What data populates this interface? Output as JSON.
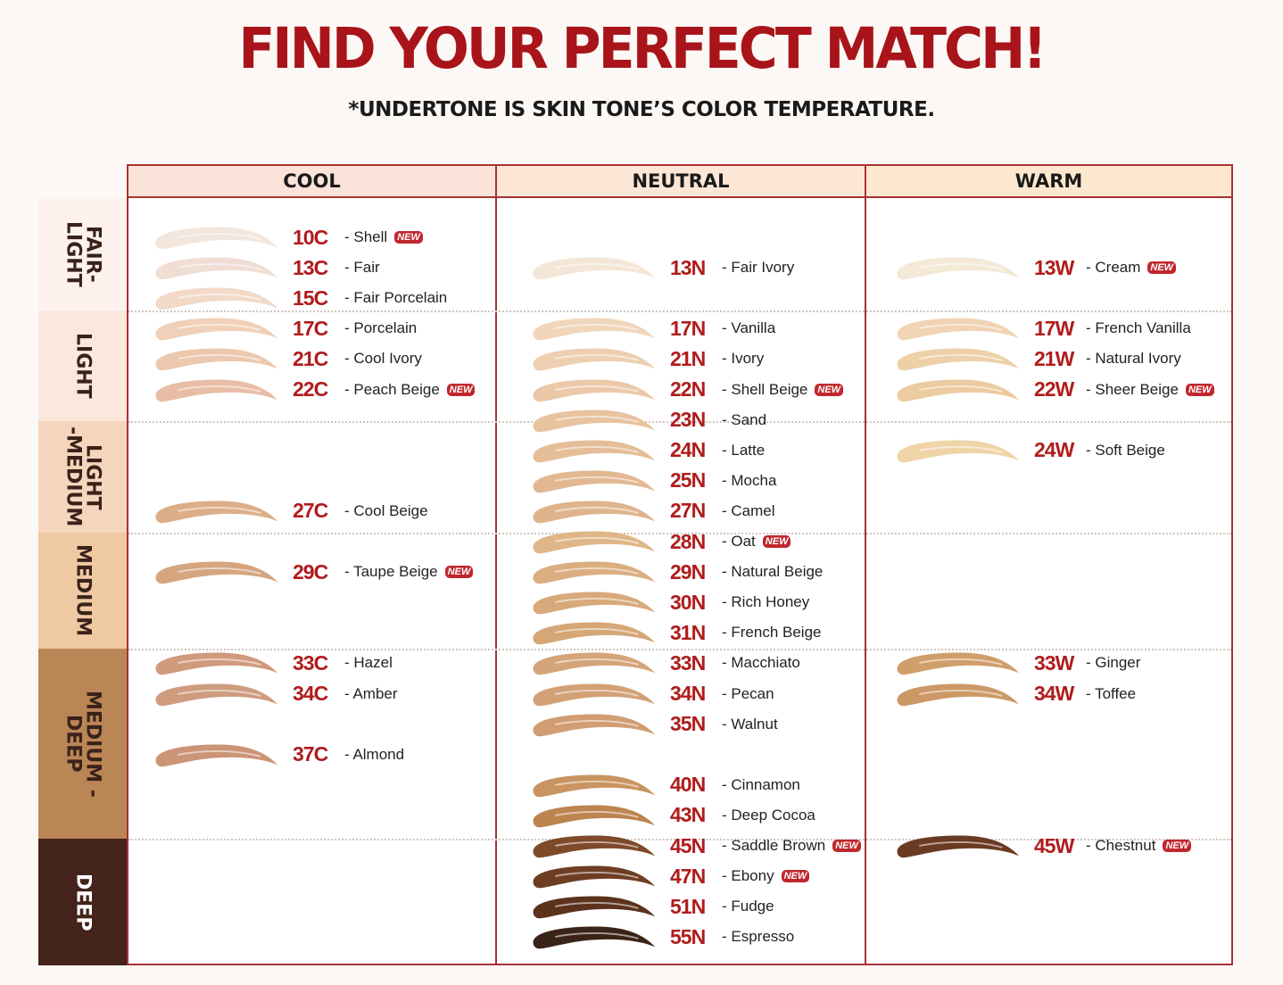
{
  "title": "FIND YOUR PERFECT MATCH!",
  "subtitle": "*UNDERTONE IS SKIN TONE’S COLOR TEMPERATURE.",
  "columns": [
    "COOL",
    "NEUTRAL",
    "WARM"
  ],
  "column_colors": [
    "#fbe3da",
    "#fce6d6",
    "#fde8cf"
  ],
  "border_color": "#a83232",
  "accent_color": "#b01c1c",
  "categories": [
    {
      "label": "FAIR-\nLIGHT",
      "color": "#fdf2ee",
      "text_color": "#3a2219"
    },
    {
      "label": "LIGHT",
      "color": "#fbe7dc",
      "text_color": "#3a2219"
    },
    {
      "label": "LIGHT\n-MEDIUM",
      "color": "#f5d6bd",
      "text_color": "#3a2219"
    },
    {
      "label": "MEDIUM",
      "color": "#efc9a2",
      "text_color": "#3a2219"
    },
    {
      "label": "MEDIUM -\nDEEP",
      "color": "#bb8656",
      "text_color": "#3a2219"
    },
    {
      "label": "DEEP",
      "color": "#43231a",
      "text_color": "#ffffff"
    }
  ],
  "new_badge": "NEW",
  "shades": [
    {
      "col": 0,
      "code": "10C",
      "name": "- Shell",
      "new": true,
      "color": "#f3e6dc"
    },
    {
      "col": 0,
      "code": "13C",
      "name": "- Fair",
      "new": false,
      "color": "#f0ddd3"
    },
    {
      "col": 0,
      "code": "15C",
      "name": "- Fair Porcelain",
      "new": false,
      "color": "#f2d9c8"
    },
    {
      "col": 0,
      "code": "17C",
      "name": "- Porcelain",
      "new": false,
      "color": "#f0d0b8"
    },
    {
      "col": 0,
      "code": "21C",
      "name": "- Cool Ivory",
      "new": false,
      "color": "#ecc8ae"
    },
    {
      "col": 0,
      "code": "22C",
      "name": "- Peach Beige",
      "new": true,
      "color": "#e8bda5"
    },
    {
      "col": 0,
      "code": "27C",
      "name": "- Cool Beige",
      "new": false,
      "color": "#dcae88"
    },
    {
      "col": 0,
      "code": "29C",
      "name": "- Taupe Beige",
      "new": true,
      "color": "#d6a57e"
    },
    {
      "col": 0,
      "code": "33C",
      "name": "- Hazel",
      "new": false,
      "color": "#d09a7c"
    },
    {
      "col": 0,
      "code": "34C",
      "name": "- Amber",
      "new": false,
      "color": "#cf9c80"
    },
    {
      "col": 0,
      "code": "37C",
      "name": "- Almond",
      "new": false,
      "color": "#cc9476"
    },
    {
      "col": 1,
      "code": "13N",
      "name": "- Fair Ivory",
      "new": false,
      "color": "#f4e6d6"
    },
    {
      "col": 1,
      "code": "17N",
      "name": "- Vanilla",
      "new": false,
      "color": "#f1d6bc"
    },
    {
      "col": 1,
      "code": "21N",
      "name": "- Ivory",
      "new": false,
      "color": "#eecfb1"
    },
    {
      "col": 1,
      "code": "22N",
      "name": "- Shell Beige",
      "new": true,
      "color": "#ebc9a8"
    },
    {
      "col": 1,
      "code": "23N",
      "name": "- Sand",
      "new": false,
      "color": "#e8c3a0"
    },
    {
      "col": 1,
      "code": "24N",
      "name": "- Latte",
      "new": false,
      "color": "#e5bd98"
    },
    {
      "col": 1,
      "code": "25N",
      "name": "- Mocha",
      "new": false,
      "color": "#e2b892"
    },
    {
      "col": 1,
      "code": "27N",
      "name": "- Camel",
      "new": false,
      "color": "#dfb48c"
    },
    {
      "col": 1,
      "code": "28N",
      "name": "- Oat",
      "new": true,
      "color": "#dfb687"
    },
    {
      "col": 1,
      "code": "29N",
      "name": "- Natural Beige",
      "new": false,
      "color": "#dbae80"
    },
    {
      "col": 1,
      "code": "30N",
      "name": "- Rich Honey",
      "new": false,
      "color": "#d8a97a"
    },
    {
      "col": 1,
      "code": "31N",
      "name": "- French Beige",
      "new": false,
      "color": "#d6a677"
    },
    {
      "col": 1,
      "code": "33N",
      "name": "- Macchiato",
      "new": false,
      "color": "#d5a478"
    },
    {
      "col": 1,
      "code": "34N",
      "name": "- Pecan",
      "new": false,
      "color": "#d2a175"
    },
    {
      "col": 1,
      "code": "35N",
      "name": "- Walnut",
      "new": false,
      "color": "#d09e72"
    },
    {
      "col": 1,
      "code": "40N",
      "name": "- Cinnamon",
      "new": false,
      "color": "#c99461"
    },
    {
      "col": 1,
      "code": "43N",
      "name": "- Deep Cocoa",
      "new": false,
      "color": "#bd8450"
    },
    {
      "col": 1,
      "code": "45N",
      "name": "- Saddle Brown",
      "new": true,
      "color": "#7e4a2a"
    },
    {
      "col": 1,
      "code": "47N",
      "name": "- Ebony",
      "new": true,
      "color": "#6e3e22"
    },
    {
      "col": 1,
      "code": "51N",
      "name": "- Fudge",
      "new": false,
      "color": "#5c321d"
    },
    {
      "col": 1,
      "code": "55N",
      "name": "- Espresso",
      "new": false,
      "color": "#3a2417"
    },
    {
      "col": 2,
      "code": "13W",
      "name": "- Cream",
      "new": true,
      "color": "#f4e8d6"
    },
    {
      "col": 2,
      "code": "17W",
      "name": "- French Vanilla",
      "new": false,
      "color": "#f0d4b4"
    },
    {
      "col": 2,
      "code": "21W",
      "name": "- Natural Ivory",
      "new": false,
      "color": "#ecd0a8"
    },
    {
      "col": 2,
      "code": "22W",
      "name": "- Sheer Beige",
      "new": true,
      "color": "#ebcba0"
    },
    {
      "col": 2,
      "code": "24W",
      "name": "- Soft Beige",
      "new": false,
      "color": "#efd4a8"
    },
    {
      "col": 2,
      "code": "33W",
      "name": "- Ginger",
      "new": false,
      "color": "#cf9e6a"
    },
    {
      "col": 2,
      "code": "34W",
      "name": "- Toffee",
      "new": false,
      "color": "#cc9966"
    },
    {
      "col": 2,
      "code": "45W",
      "name": "- Chestnut",
      "new": true,
      "color": "#6b3a22"
    }
  ]
}
